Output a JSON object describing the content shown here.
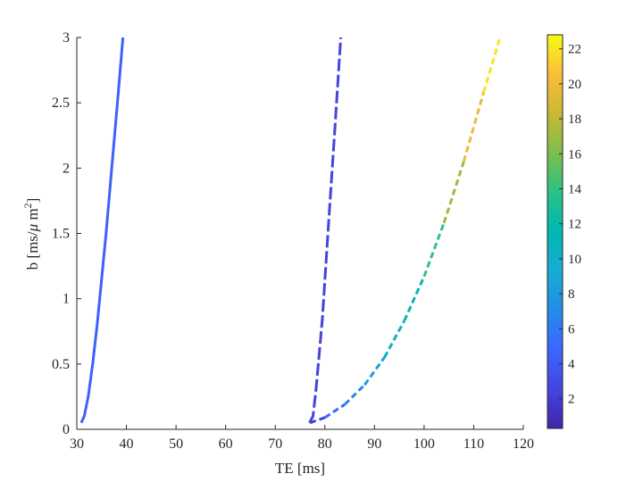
{
  "chart_data": {
    "type": "line",
    "title": "",
    "xlabel": "TE [ms]",
    "ylabel_main": "b [ms/",
    "ylabel_mu": "μ",
    "ylabel_unit": " m",
    "ylabel_sup": "2",
    "ylabel_close": "]",
    "xlim": [
      30,
      120
    ],
    "ylim": [
      0,
      3
    ],
    "xticks": [
      "30",
      "40",
      "50",
      "60",
      "70",
      "80",
      "90",
      "100",
      "110",
      "120"
    ],
    "yticks": [
      "0",
      "0.5",
      "1",
      "1.5",
      "2",
      "2.5",
      "3"
    ],
    "grid": false,
    "legend": "none",
    "colorbar": {
      "position": "right",
      "colormap": "parula",
      "range": [
        0.3,
        22.8
      ],
      "ticks": [
        "2",
        "4",
        "6",
        "8",
        "10",
        "12",
        "14",
        "16",
        "18",
        "20",
        "22"
      ]
    },
    "series": [
      {
        "style": "solid",
        "color_value": 4.5,
        "x": [
          30.9,
          31.5,
          32.3,
          33.2,
          34.1,
          35.0,
          35.9,
          36.7,
          37.5,
          38.3,
          39.3
        ],
        "y": [
          0.05,
          0.1,
          0.25,
          0.5,
          0.8,
          1.15,
          1.5,
          1.85,
          2.2,
          2.55,
          3.0
        ]
      },
      {
        "style": "long-dash",
        "color_value": 2.5,
        "x": [
          76.9,
          77.6,
          78.2,
          78.8,
          79.5,
          80.1,
          80.7,
          81.4,
          82.1,
          83.2
        ],
        "y": [
          0.05,
          0.1,
          0.3,
          0.55,
          0.85,
          1.2,
          1.55,
          1.95,
          2.35,
          3.0
        ]
      },
      {
        "style": "short-dash",
        "x": [
          77.0,
          80.0,
          84.0,
          88.0,
          92.0,
          96.0,
          100.0,
          104.0,
          108.0,
          112.0,
          115.3
        ],
        "y": [
          0.05,
          0.09,
          0.19,
          0.34,
          0.55,
          0.83,
          1.17,
          1.58,
          2.05,
          2.58,
          3.0
        ],
        "c": [
          1.0,
          3.5,
          6.0,
          7.5,
          9.0,
          11.0,
          12.5,
          15.5,
          18.5,
          21.0,
          22.8
        ]
      }
    ]
  }
}
